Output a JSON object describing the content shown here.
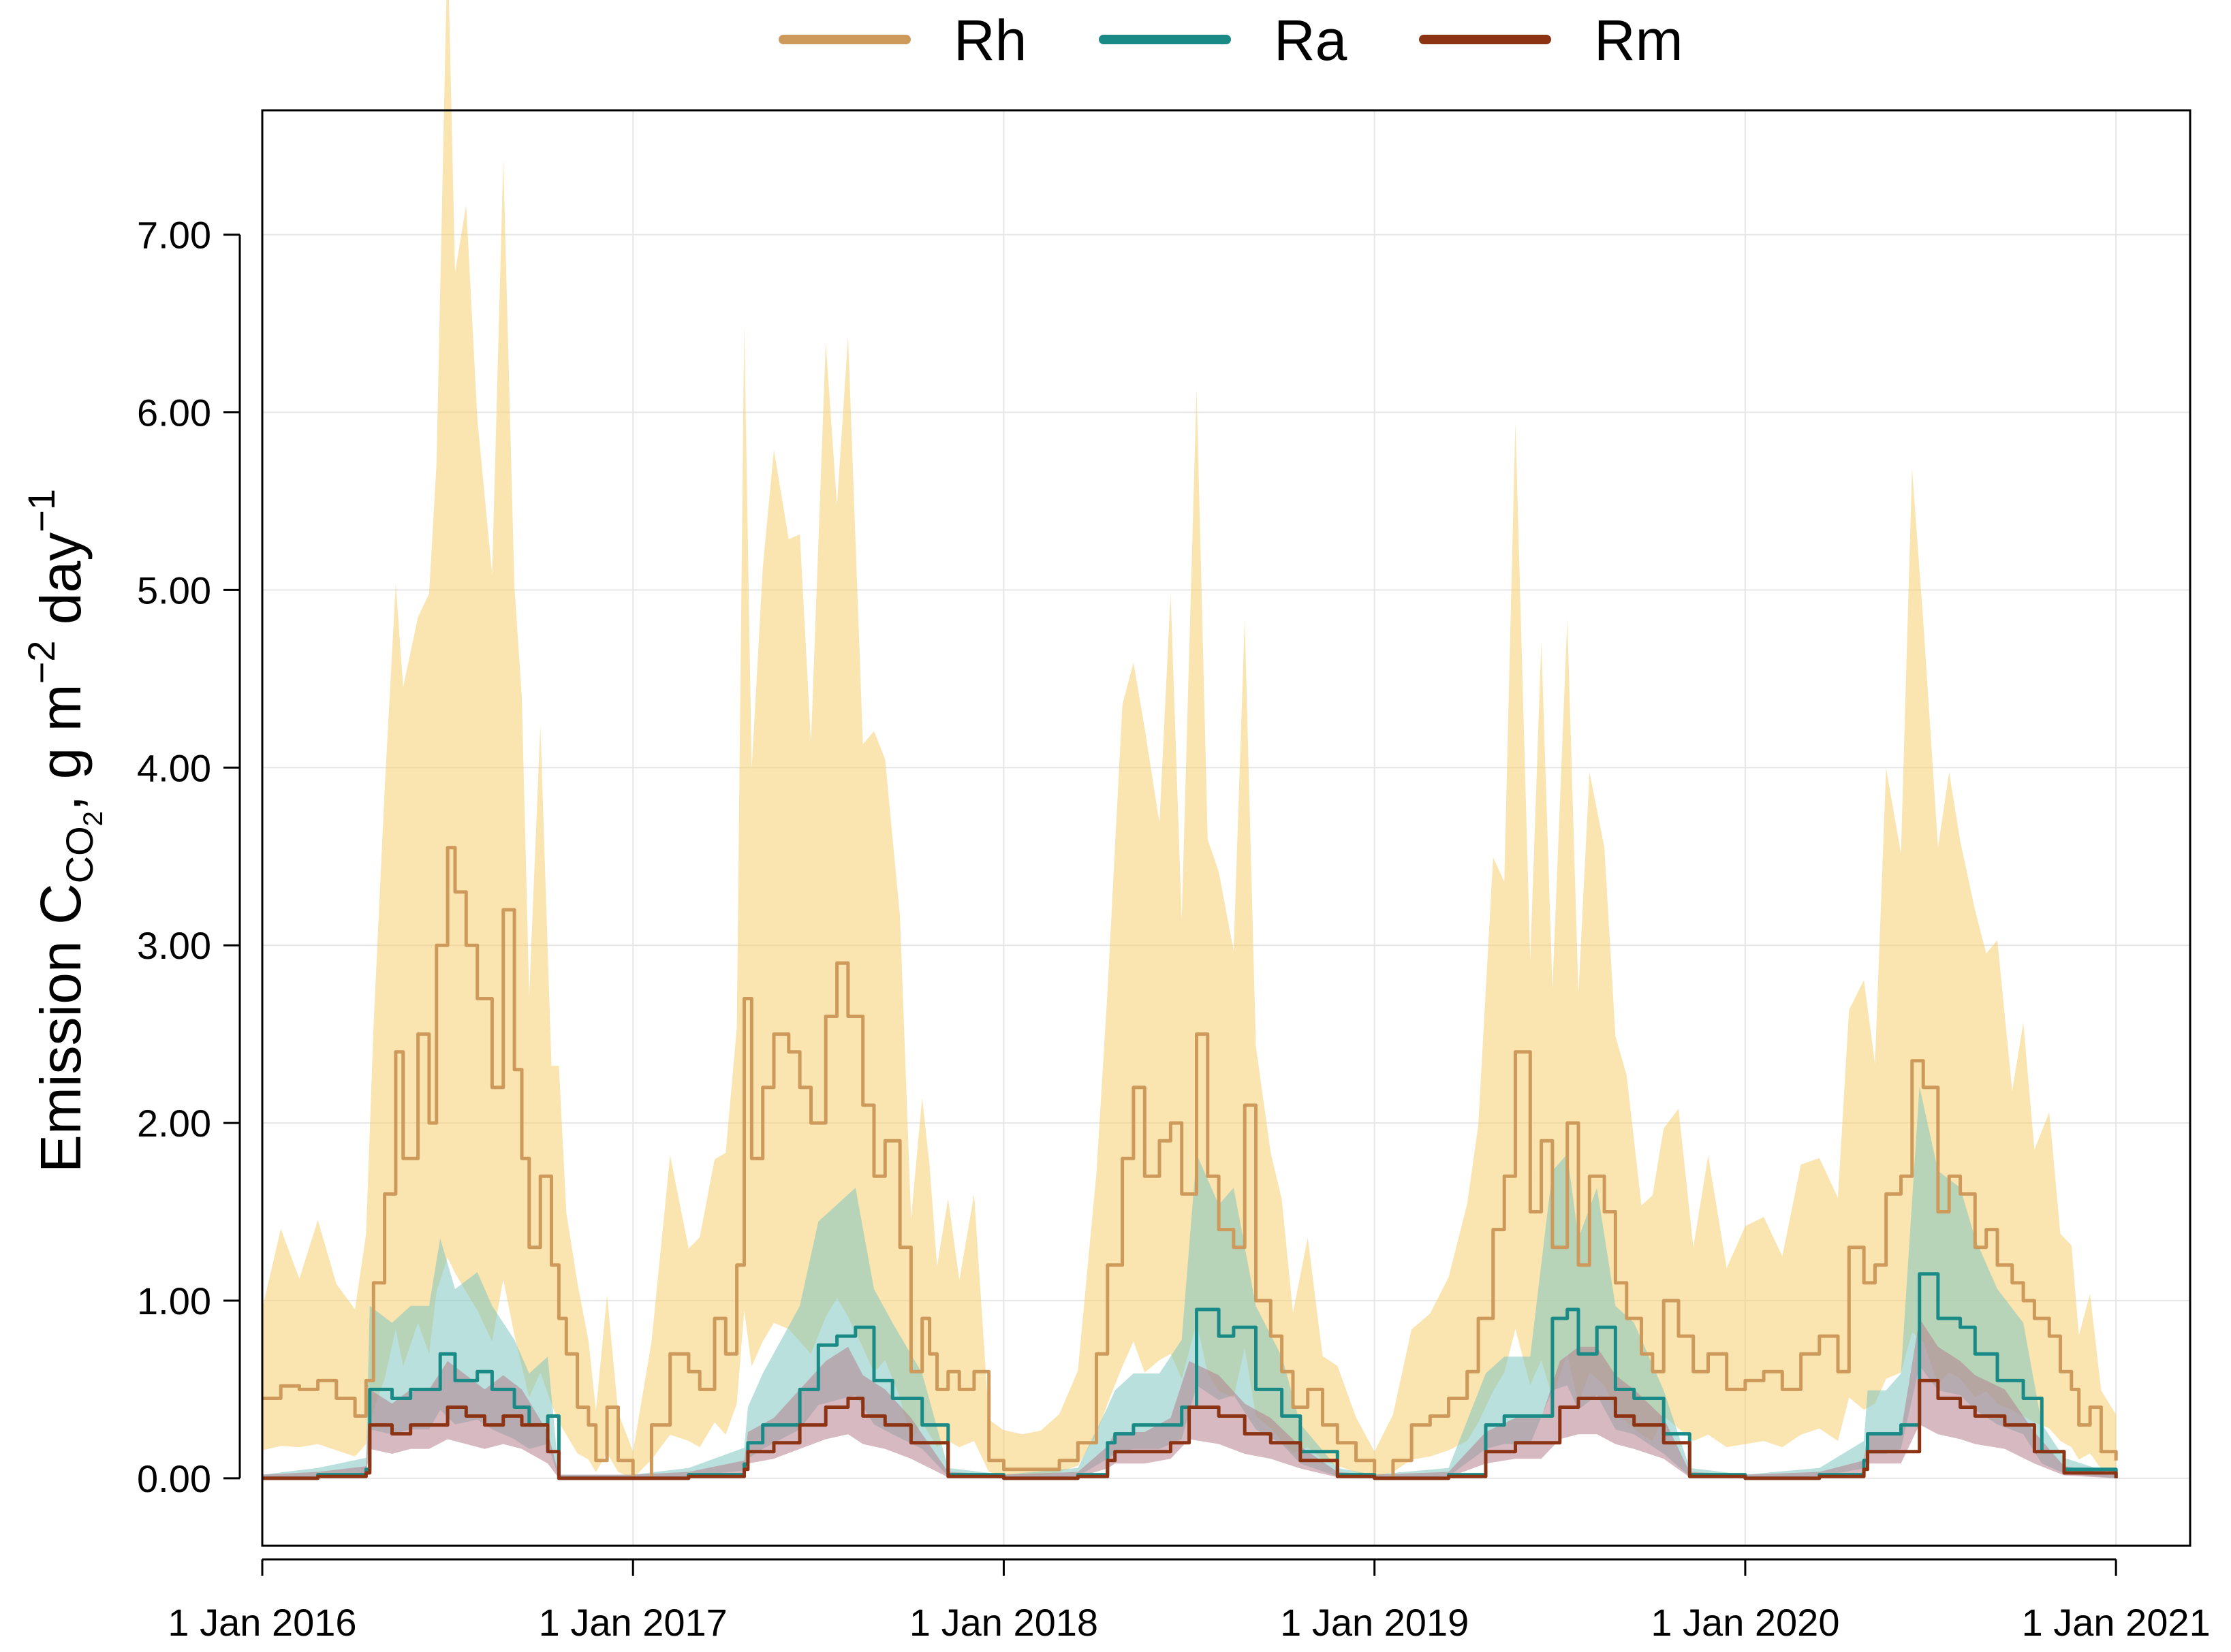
{
  "chart_data": {
    "type": "line",
    "title": "",
    "xlabel": "",
    "ylabel": {
      "prefix": "Emission C",
      "sub": "CO",
      "subsub": "2",
      "unit_lead": ", g m",
      "exp1": "−2",
      "unit_mid": " day",
      "exp2": "−1"
    },
    "legend": {
      "placement": "top-center",
      "entries": [
        {
          "name": "Rh",
          "color": "#CE9A5B"
        },
        {
          "name": "Ra",
          "color": "#198A86"
        },
        {
          "name": "Rm",
          "color": "#8B3312"
        }
      ]
    },
    "xlim": [
      2016.0,
      2021.2
    ],
    "ylim": [
      -0.38,
      7.7
    ],
    "x_ticks": [
      {
        "value": 2016.0,
        "label": "1 Jan 2016"
      },
      {
        "value": 2017.0,
        "label": "1 Jan 2017"
      },
      {
        "value": 2018.0,
        "label": "1 Jan 2018"
      },
      {
        "value": 2019.0,
        "label": "1 Jan 2019"
      },
      {
        "value": 2020.0,
        "label": "1 Jan 2020"
      },
      {
        "value": 2021.0,
        "label": "1 Jan 2021"
      }
    ],
    "y_ticks": [
      {
        "value": 0,
        "label": "0.00"
      },
      {
        "value": 1,
        "label": "1.00"
      },
      {
        "value": 2,
        "label": "2.00"
      },
      {
        "value": 3,
        "label": "3.00"
      },
      {
        "value": 4,
        "label": "4.00"
      },
      {
        "value": 5,
        "label": "5.00"
      },
      {
        "value": 6,
        "label": "6.00"
      },
      {
        "value": 7,
        "label": "7.00"
      }
    ],
    "grid": true,
    "series": [
      {
        "name": "Rh",
        "color": "#CE9A5B",
        "band_color": "#F5CE6E",
        "x": [
          2016.0,
          2016.05,
          2016.1,
          2016.15,
          2016.2,
          2016.25,
          2016.28,
          2016.3,
          2016.33,
          2016.36,
          2016.38,
          2016.42,
          2016.45,
          2016.47,
          2016.5,
          2016.52,
          2016.55,
          2016.58,
          2016.62,
          2016.65,
          2016.68,
          2016.7,
          2016.72,
          2016.75,
          2016.78,
          2016.8,
          2016.82,
          2016.85,
          2016.88,
          2016.9,
          2016.93,
          2016.96,
          2017.0,
          2017.05,
          2017.1,
          2017.15,
          2017.18,
          2017.22,
          2017.25,
          2017.28,
          2017.3,
          2017.32,
          2017.35,
          2017.38,
          2017.42,
          2017.45,
          2017.48,
          2017.52,
          2017.55,
          2017.58,
          2017.62,
          2017.65,
          2017.68,
          2017.72,
          2017.75,
          2017.78,
          2017.8,
          2017.82,
          2017.85,
          2017.88,
          2017.92,
          2017.96,
          2018.0,
          2018.05,
          2018.1,
          2018.15,
          2018.2,
          2018.25,
          2018.28,
          2018.32,
          2018.35,
          2018.38,
          2018.42,
          2018.45,
          2018.48,
          2018.52,
          2018.55,
          2018.58,
          2018.62,
          2018.65,
          2018.68,
          2018.72,
          2018.75,
          2018.78,
          2018.82,
          2018.86,
          2018.9,
          2018.95,
          2019.0,
          2019.05,
          2019.1,
          2019.15,
          2019.2,
          2019.25,
          2019.28,
          2019.32,
          2019.35,
          2019.38,
          2019.42,
          2019.45,
          2019.48,
          2019.52,
          2019.55,
          2019.58,
          2019.62,
          2019.65,
          2019.68,
          2019.72,
          2019.75,
          2019.78,
          2019.82,
          2019.86,
          2019.9,
          2019.95,
          2020.0,
          2020.05,
          2020.1,
          2020.15,
          2020.2,
          2020.25,
          2020.28,
          2020.32,
          2020.35,
          2020.38,
          2020.42,
          2020.45,
          2020.48,
          2020.52,
          2020.55,
          2020.58,
          2020.62,
          2020.65,
          2020.68,
          2020.72,
          2020.75,
          2020.78,
          2020.82,
          2020.85,
          2020.88,
          2020.9,
          2020.93,
          2020.96,
          2021.0
        ],
        "values": [
          0.45,
          0.52,
          0.5,
          0.55,
          0.45,
          0.35,
          0.55,
          1.1,
          1.6,
          2.4,
          1.8,
          2.5,
          2.0,
          3.0,
          3.55,
          3.3,
          3.0,
          2.7,
          2.2,
          3.2,
          2.3,
          1.8,
          1.3,
          1.7,
          1.2,
          0.9,
          0.7,
          0.4,
          0.3,
          0.1,
          0.4,
          0.1,
          0.0,
          0.3,
          0.7,
          0.6,
          0.5,
          0.9,
          0.7,
          1.2,
          2.7,
          1.8,
          2.2,
          2.5,
          2.4,
          2.2,
          2.0,
          2.6,
          2.9,
          2.6,
          2.1,
          1.7,
          1.9,
          1.3,
          0.6,
          0.9,
          0.7,
          0.5,
          0.6,
          0.5,
          0.6,
          0.1,
          0.05,
          0.05,
          0.05,
          0.1,
          0.2,
          0.7,
          1.2,
          1.8,
          2.2,
          1.7,
          1.9,
          2.0,
          1.6,
          2.5,
          1.7,
          1.4,
          1.3,
          2.1,
          1.0,
          0.8,
          0.6,
          0.4,
          0.5,
          0.3,
          0.2,
          0.1,
          0.0,
          0.1,
          0.3,
          0.35,
          0.45,
          0.6,
          0.9,
          1.4,
          1.7,
          2.4,
          1.5,
          1.9,
          1.3,
          2.0,
          1.2,
          1.7,
          1.5,
          1.1,
          0.9,
          0.7,
          0.6,
          1.0,
          0.8,
          0.6,
          0.7,
          0.5,
          0.55,
          0.6,
          0.5,
          0.7,
          0.8,
          0.6,
          1.3,
          1.1,
          1.2,
          1.6,
          1.7,
          2.35,
          2.2,
          1.5,
          1.7,
          1.6,
          1.3,
          1.4,
          1.2,
          1.1,
          1.0,
          0.9,
          0.8,
          0.6,
          0.5,
          0.3,
          0.4,
          0.15,
          0.1
        ]
      },
      {
        "name": "Ra",
        "color": "#198A86",
        "band_color": "#7FC7C0",
        "x": [
          2016.0,
          2016.15,
          2016.28,
          2016.29,
          2016.35,
          2016.4,
          2016.45,
          2016.48,
          2016.52,
          2016.58,
          2016.62,
          2016.68,
          2016.72,
          2016.77,
          2016.8,
          2017.0,
          2017.15,
          2017.3,
          2017.31,
          2017.35,
          2017.45,
          2017.5,
          2017.55,
          2017.6,
          2017.65,
          2017.7,
          2017.78,
          2017.85,
          2018.0,
          2018.2,
          2018.28,
          2018.3,
          2018.35,
          2018.42,
          2018.48,
          2018.52,
          2018.58,
          2018.62,
          2018.68,
          2018.75,
          2018.8,
          2018.9,
          2019.0,
          2019.2,
          2019.3,
          2019.35,
          2019.42,
          2019.48,
          2019.52,
          2019.55,
          2019.6,
          2019.65,
          2019.7,
          2019.78,
          2019.85,
          2020.0,
          2020.2,
          2020.32,
          2020.33,
          2020.38,
          2020.42,
          2020.47,
          2020.52,
          2020.58,
          2020.62,
          2020.68,
          2020.75,
          2020.8,
          2020.86,
          2021.0
        ],
        "values": [
          0.0,
          0.02,
          0.05,
          0.5,
          0.45,
          0.5,
          0.5,
          0.7,
          0.55,
          0.6,
          0.5,
          0.4,
          0.3,
          0.35,
          0.0,
          0.0,
          0.02,
          0.08,
          0.2,
          0.3,
          0.5,
          0.75,
          0.8,
          0.85,
          0.55,
          0.45,
          0.3,
          0.02,
          0.0,
          0.02,
          0.2,
          0.25,
          0.3,
          0.3,
          0.4,
          0.95,
          0.8,
          0.85,
          0.5,
          0.35,
          0.15,
          0.02,
          0.0,
          0.02,
          0.3,
          0.35,
          0.35,
          0.9,
          0.95,
          0.7,
          0.85,
          0.5,
          0.45,
          0.25,
          0.02,
          0.0,
          0.02,
          0.1,
          0.25,
          0.25,
          0.3,
          1.15,
          0.9,
          0.85,
          0.7,
          0.55,
          0.45,
          0.15,
          0.05,
          0.0
        ]
      },
      {
        "name": "Rm",
        "color": "#8B3312",
        "band_color": "#B77F90",
        "x": [
          2016.0,
          2016.15,
          2016.28,
          2016.29,
          2016.35,
          2016.4,
          2016.45,
          2016.5,
          2016.55,
          2016.6,
          2016.65,
          2016.7,
          2016.77,
          2016.8,
          2017.0,
          2017.15,
          2017.3,
          2017.31,
          2017.38,
          2017.45,
          2017.52,
          2017.58,
          2017.62,
          2017.68,
          2017.75,
          2017.85,
          2018.0,
          2018.2,
          2018.28,
          2018.3,
          2018.38,
          2018.45,
          2018.5,
          2018.58,
          2018.65,
          2018.72,
          2018.8,
          2018.9,
          2019.0,
          2019.2,
          2019.3,
          2019.38,
          2019.45,
          2019.5,
          2019.55,
          2019.6,
          2019.65,
          2019.7,
          2019.78,
          2019.85,
          2020.0,
          2020.2,
          2020.32,
          2020.33,
          2020.42,
          2020.47,
          2020.52,
          2020.58,
          2020.62,
          2020.7,
          2020.78,
          2020.86,
          2021.0
        ],
        "values": [
          0.0,
          0.01,
          0.03,
          0.3,
          0.25,
          0.3,
          0.3,
          0.4,
          0.35,
          0.3,
          0.35,
          0.3,
          0.15,
          0.0,
          0.0,
          0.01,
          0.05,
          0.15,
          0.2,
          0.3,
          0.4,
          0.45,
          0.35,
          0.3,
          0.2,
          0.01,
          0.0,
          0.01,
          0.1,
          0.15,
          0.15,
          0.2,
          0.4,
          0.35,
          0.25,
          0.2,
          0.1,
          0.01,
          0.0,
          0.01,
          0.15,
          0.2,
          0.2,
          0.4,
          0.45,
          0.45,
          0.35,
          0.3,
          0.2,
          0.01,
          0.0,
          0.01,
          0.05,
          0.15,
          0.15,
          0.55,
          0.45,
          0.4,
          0.35,
          0.3,
          0.15,
          0.03,
          0.0
        ]
      }
    ]
  }
}
